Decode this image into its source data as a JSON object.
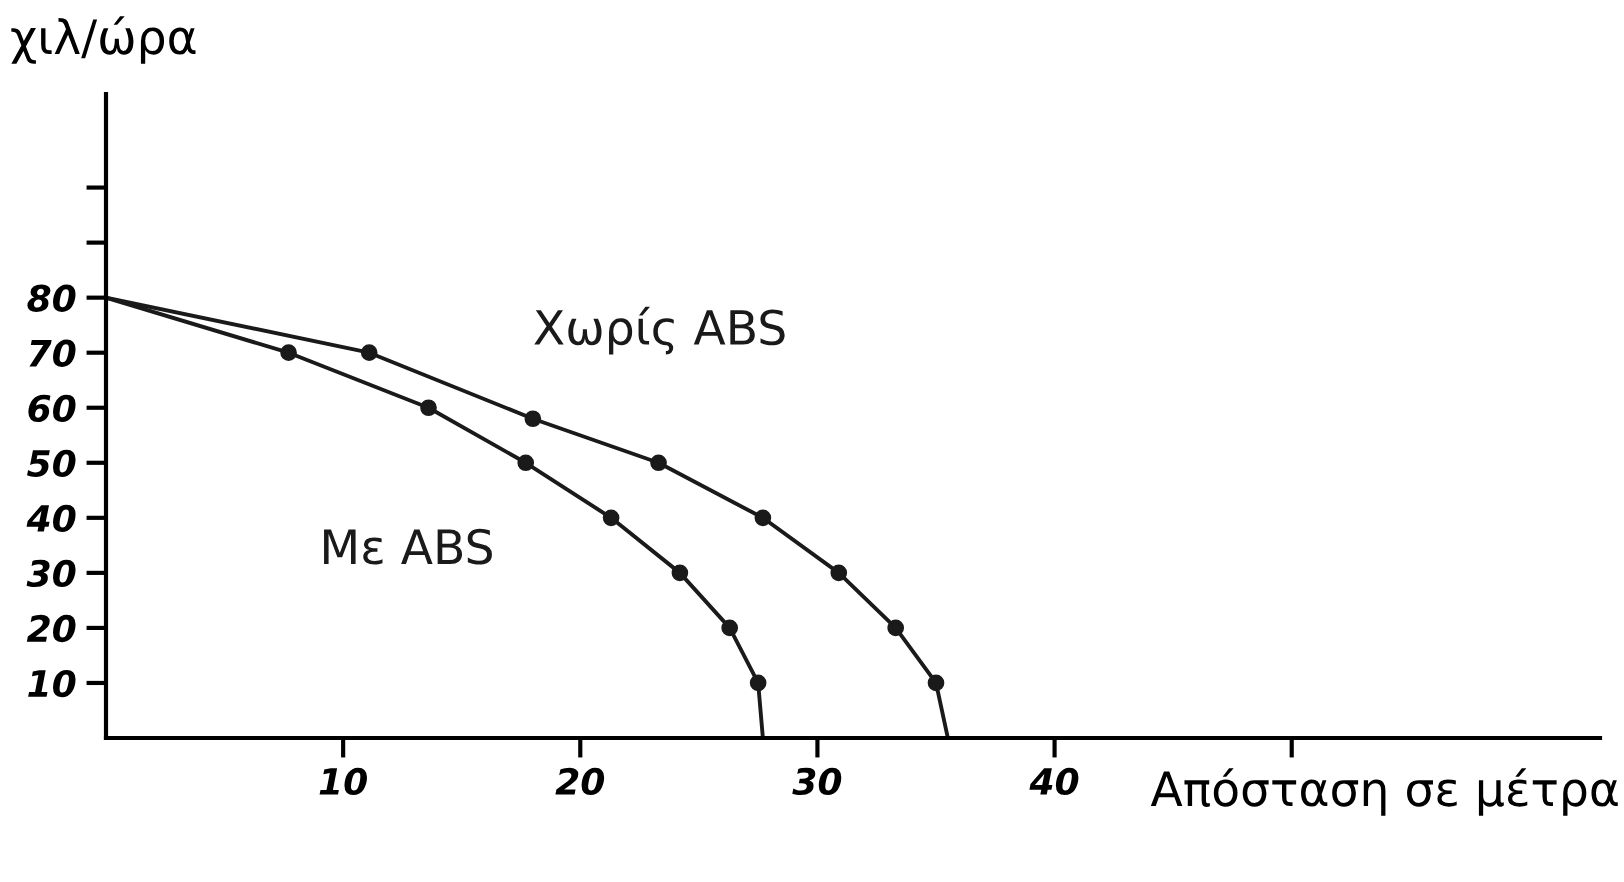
{
  "chart_data": {
    "type": "line",
    "xlabel": "Απόσταση σε μέτρα",
    "ylabel": "χιλ/ώρα",
    "xlim": [
      0,
      63
    ],
    "ylim": [
      0,
      117
    ],
    "xticks": [
      10,
      20,
      30,
      40,
      {
        "value": 50,
        "label": null
      }
    ],
    "yticks": [
      10,
      20,
      30,
      40,
      50,
      60,
      70,
      80,
      {
        "value": 90,
        "label": null
      },
      {
        "value": 100,
        "label": null
      }
    ],
    "marker": "circle",
    "line_style": "solid",
    "grid": false,
    "legend": false,
    "series": [
      {
        "name": "Χωρίς ABS",
        "color": "#1a1a1a",
        "x": [
          0,
          11.1,
          18,
          23.3,
          27.7,
          30.9,
          33.3,
          35,
          35.5
        ],
        "values": [
          80,
          70,
          58,
          50,
          40,
          30,
          20,
          10,
          0
        ]
      },
      {
        "name": "Με ABS",
        "color": "#1a1a1a",
        "x": [
          0,
          7.7,
          13.6,
          17.7,
          21.3,
          24.2,
          26.3,
          27.5,
          27.7
        ],
        "values": [
          80,
          70,
          60,
          50,
          40,
          30,
          20,
          10,
          0
        ]
      }
    ]
  }
}
